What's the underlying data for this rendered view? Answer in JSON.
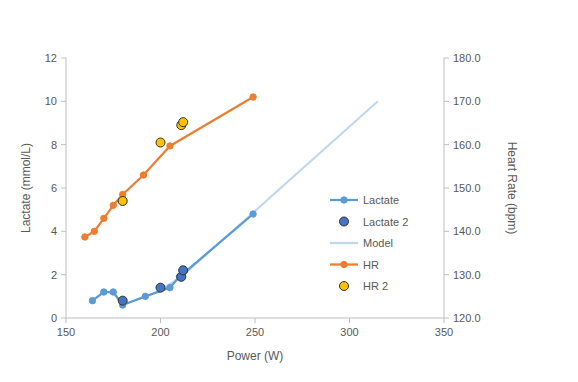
{
  "chart_data": {
    "type": "line",
    "x_label": "Power (W)",
    "y_label": "Lactate (mmol/L)",
    "y2_label": "Heart Rate (bpm)",
    "xlim": [
      150,
      350
    ],
    "xticks": [
      150,
      200,
      250,
      300,
      350
    ],
    "ylim": [
      0,
      12
    ],
    "yticks": [
      0,
      2,
      4,
      6,
      8,
      10,
      12
    ],
    "y2lim": [
      120,
      180
    ],
    "y2ticks": [
      {
        "value": 120,
        "label": "120.0"
      },
      {
        "value": 130,
        "label": "130.0"
      },
      {
        "value": 140,
        "label": "140.0"
      },
      {
        "value": 150,
        "label": "150.0"
      },
      {
        "value": 160,
        "label": "160.0"
      },
      {
        "value": 170,
        "label": "170.0"
      },
      {
        "value": 180,
        "label": "180.0"
      }
    ],
    "grid": false,
    "legend": "right",
    "series": [
      {
        "name": "Lactate",
        "type": "line",
        "marker": "circle",
        "color": "#5b9bd5",
        "x": [
          164,
          170,
          175,
          180,
          192,
          205,
          210,
          249
        ],
        "values": [
          0.8,
          1.2,
          1.2,
          0.6,
          1.0,
          1.4,
          1.9,
          4.8
        ]
      },
      {
        "name": "Lactate 2",
        "type": "scatter",
        "marker": "circle",
        "color": "#4472c4",
        "x": [
          180,
          200,
          211,
          212
        ],
        "values": [
          0.8,
          1.4,
          1.9,
          2.2
        ]
      },
      {
        "name": "Model",
        "type": "line",
        "marker": "none",
        "color": "#bdd7ee",
        "x": [
          200,
          211,
          315
        ],
        "values": [
          1.3,
          1.9,
          10.0
        ]
      },
      {
        "name": "HR",
        "type": "line",
        "marker": "circle",
        "color": "#ed7d31",
        "axis": "y2",
        "x": [
          160,
          165,
          170,
          175,
          180,
          191,
          205,
          249
        ],
        "values": [
          138.7,
          140.0,
          143.0,
          146.0,
          148.5,
          153.0,
          159.7,
          171.0
        ]
      },
      {
        "name": "HR 2",
        "type": "scatter",
        "marker": "circle",
        "color": "#ffc000",
        "axis": "y2",
        "x": [
          180,
          200,
          211,
          212
        ],
        "values": [
          147.0,
          160.5,
          164.5,
          165.2
        ]
      }
    ]
  }
}
